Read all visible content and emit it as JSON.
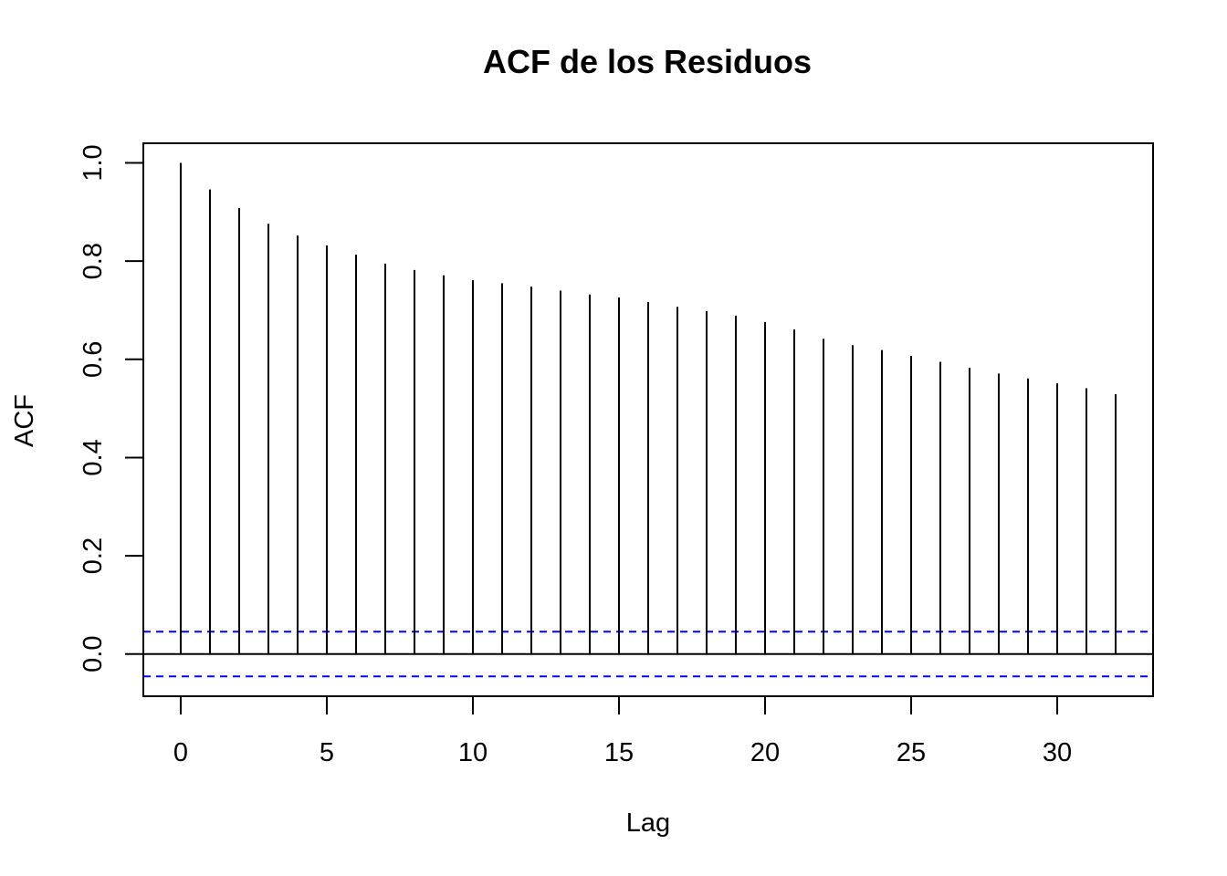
{
  "chart_data": {
    "type": "bar",
    "title": "ACF de los Residuos",
    "xlabel": "Lag",
    "ylabel": "ACF",
    "xlim": [
      -1.28,
      33.28
    ],
    "ylim": [
      -0.086,
      1.04
    ],
    "x_ticks": [
      0,
      5,
      10,
      15,
      20,
      25,
      30
    ],
    "x_tick_labels": [
      "0",
      "5",
      "10",
      "15",
      "20",
      "25",
      "30"
    ],
    "y_ticks": [
      0.0,
      0.2,
      0.4,
      0.6,
      0.8,
      1.0
    ],
    "y_tick_labels": [
      "0.0",
      "0.2",
      "0.4",
      "0.6",
      "0.8",
      "1.0"
    ],
    "lags": [
      0,
      1,
      2,
      3,
      4,
      5,
      6,
      7,
      8,
      9,
      10,
      11,
      12,
      13,
      14,
      15,
      16,
      17,
      18,
      19,
      20,
      21,
      22,
      23,
      24,
      25,
      26,
      27,
      28,
      29,
      30,
      31,
      32
    ],
    "values": [
      1.0,
      0.946,
      0.908,
      0.876,
      0.852,
      0.832,
      0.813,
      0.795,
      0.782,
      0.771,
      0.761,
      0.755,
      0.748,
      0.74,
      0.732,
      0.726,
      0.717,
      0.707,
      0.698,
      0.689,
      0.676,
      0.661,
      0.642,
      0.629,
      0.619,
      0.607,
      0.595,
      0.583,
      0.571,
      0.561,
      0.551,
      0.541,
      0.529
    ],
    "confidence_bounds": [
      0.0455,
      -0.0455
    ],
    "bound_color": "#0000ff",
    "line_color": "#000000",
    "grid": false
  }
}
